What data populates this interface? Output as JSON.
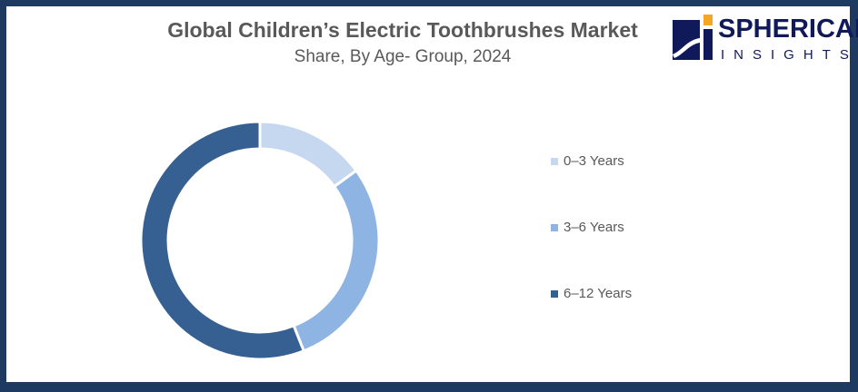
{
  "chart_data": {
    "type": "pie",
    "variant": "donut",
    "title": "Global Children’s Electric Toothbrushes Market",
    "subtitle": "Share, By Age- Group, 2024",
    "categories": [
      "0–3 Years",
      "3–6 Years",
      "6–12 Years"
    ],
    "values": [
      15,
      29,
      56
    ],
    "colors": [
      "#c5d8f0",
      "#8eb4e3",
      "#366092"
    ],
    "legend_position": "right"
  },
  "logo": {
    "top": "SPHERICAL",
    "bottom": "INSIGHTS",
    "colors": {
      "navy": "#10195a",
      "orange": "#f5a623"
    }
  },
  "colors": {
    "border": "#1f3a60"
  }
}
